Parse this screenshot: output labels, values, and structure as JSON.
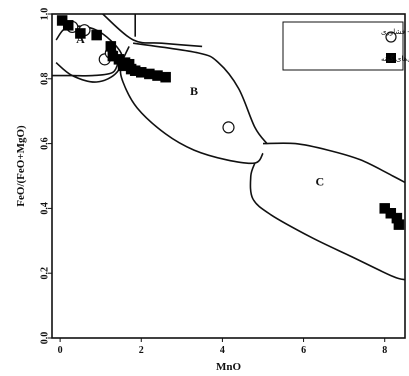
{
  "chart_data": {
    "type": "scatter",
    "title": "",
    "xlabel": "MnO",
    "ylabel": "FeO/(FeO+MgO)",
    "xlim": [
      -0.2,
      8.5
    ],
    "ylim": [
      0.0,
      1.0
    ],
    "x_ticks": [
      0,
      2,
      4,
      6,
      8
    ],
    "y_ticks": [
      0.0,
      0.2,
      0.4,
      0.6,
      0.8,
      1.0
    ],
    "x_tick_labels": [
      "0",
      "2",
      "4",
      "6",
      "8"
    ],
    "y_tick_labels": [
      "0.0",
      "0.2",
      "0.4",
      "0.6",
      "0.8",
      "1.0"
    ],
    "field_labels": [
      {
        "text": "A",
        "x": 0.5,
        "y": 0.91
      },
      {
        "text": "B",
        "x": 3.3,
        "y": 0.75
      },
      {
        "text": "C",
        "x": 6.4,
        "y": 0.47
      }
    ],
    "boundaries": [
      {
        "name": "A-upper",
        "points": [
          [
            1.05,
            1.0
          ],
          [
            1.8,
            0.92
          ],
          [
            2.5,
            0.91
          ],
          [
            3.5,
            0.9
          ]
        ]
      },
      {
        "name": "A-loop",
        "points": [
          [
            -0.1,
            0.92
          ],
          [
            0.2,
            0.96
          ],
          [
            0.9,
            0.95
          ],
          [
            1.5,
            0.88
          ],
          [
            1.4,
            0.82
          ],
          [
            0.9,
            0.79
          ],
          [
            0.3,
            0.81
          ],
          [
            -0.1,
            0.85
          ]
        ]
      },
      {
        "name": "A-left-base",
        "points": [
          [
            -0.2,
            0.81
          ],
          [
            0.3,
            0.81
          ],
          [
            0.8,
            0.81
          ],
          [
            1.3,
            0.82
          ],
          [
            1.45,
            0.86
          ]
        ]
      },
      {
        "name": "A-B divider",
        "points": [
          [
            1.7,
            0.9
          ],
          [
            1.5,
            0.84
          ],
          [
            1.55,
            0.79
          ],
          [
            1.9,
            0.71
          ],
          [
            2.6,
            0.63
          ],
          [
            3.3,
            0.58
          ],
          [
            4.1,
            0.55
          ],
          [
            4.8,
            0.54
          ],
          [
            5.0,
            0.57
          ]
        ]
      },
      {
        "name": "B-upper",
        "points": [
          [
            1.8,
            0.91
          ],
          [
            3.4,
            0.88
          ],
          [
            3.9,
            0.85
          ],
          [
            4.4,
            0.77
          ],
          [
            4.8,
            0.65
          ],
          [
            5.1,
            0.6
          ]
        ]
      },
      {
        "name": "C-field",
        "points": [
          [
            4.8,
            0.54
          ],
          [
            4.7,
            0.5
          ],
          [
            4.75,
            0.43
          ],
          [
            5.2,
            0.38
          ],
          [
            6.2,
            0.31
          ],
          [
            7.2,
            0.25
          ],
          [
            8.2,
            0.19
          ],
          [
            8.5,
            0.18
          ]
        ]
      },
      {
        "name": "C-upper",
        "points": [
          [
            5.0,
            0.6
          ],
          [
            5.8,
            0.6
          ],
          [
            6.6,
            0.58
          ],
          [
            7.4,
            0.55
          ],
          [
            8.2,
            0.5
          ],
          [
            8.5,
            0.48
          ]
        ]
      },
      {
        "name": "top-stub",
        "points": [
          [
            1.85,
            1.0
          ],
          [
            1.85,
            0.93
          ]
        ]
      }
    ],
    "series": [
      {
        "name": "گرونه‌ای‌های متحمله زمان پایه - فشاوری",
        "marker": "open-circle",
        "color": "#ffffff",
        "points": [
          [
            0.3,
            0.96
          ],
          [
            0.6,
            0.95
          ],
          [
            1.1,
            0.86
          ],
          [
            1.25,
            0.88
          ],
          [
            4.15,
            0.65
          ]
        ]
      },
      {
        "name": "گرونه‌ای‌های گونه",
        "marker": "filled-square",
        "color": "#000000",
        "points": [
          [
            0.05,
            0.98
          ],
          [
            0.2,
            0.965
          ],
          [
            0.5,
            0.94
          ],
          [
            0.9,
            0.935
          ],
          [
            1.25,
            0.9
          ],
          [
            1.3,
            0.87
          ],
          [
            1.45,
            0.86
          ],
          [
            1.6,
            0.85
          ],
          [
            1.75,
            0.83
          ],
          [
            1.85,
            0.825
          ],
          [
            2.0,
            0.82
          ],
          [
            2.2,
            0.815
          ],
          [
            2.4,
            0.81
          ],
          [
            2.6,
            0.805
          ],
          [
            1.55,
            0.84
          ],
          [
            1.7,
            0.845
          ],
          [
            8.0,
            0.4
          ],
          [
            8.15,
            0.385
          ],
          [
            8.3,
            0.37
          ],
          [
            8.35,
            0.35
          ]
        ]
      }
    ],
    "legend_position": "top-right",
    "grid": false
  }
}
